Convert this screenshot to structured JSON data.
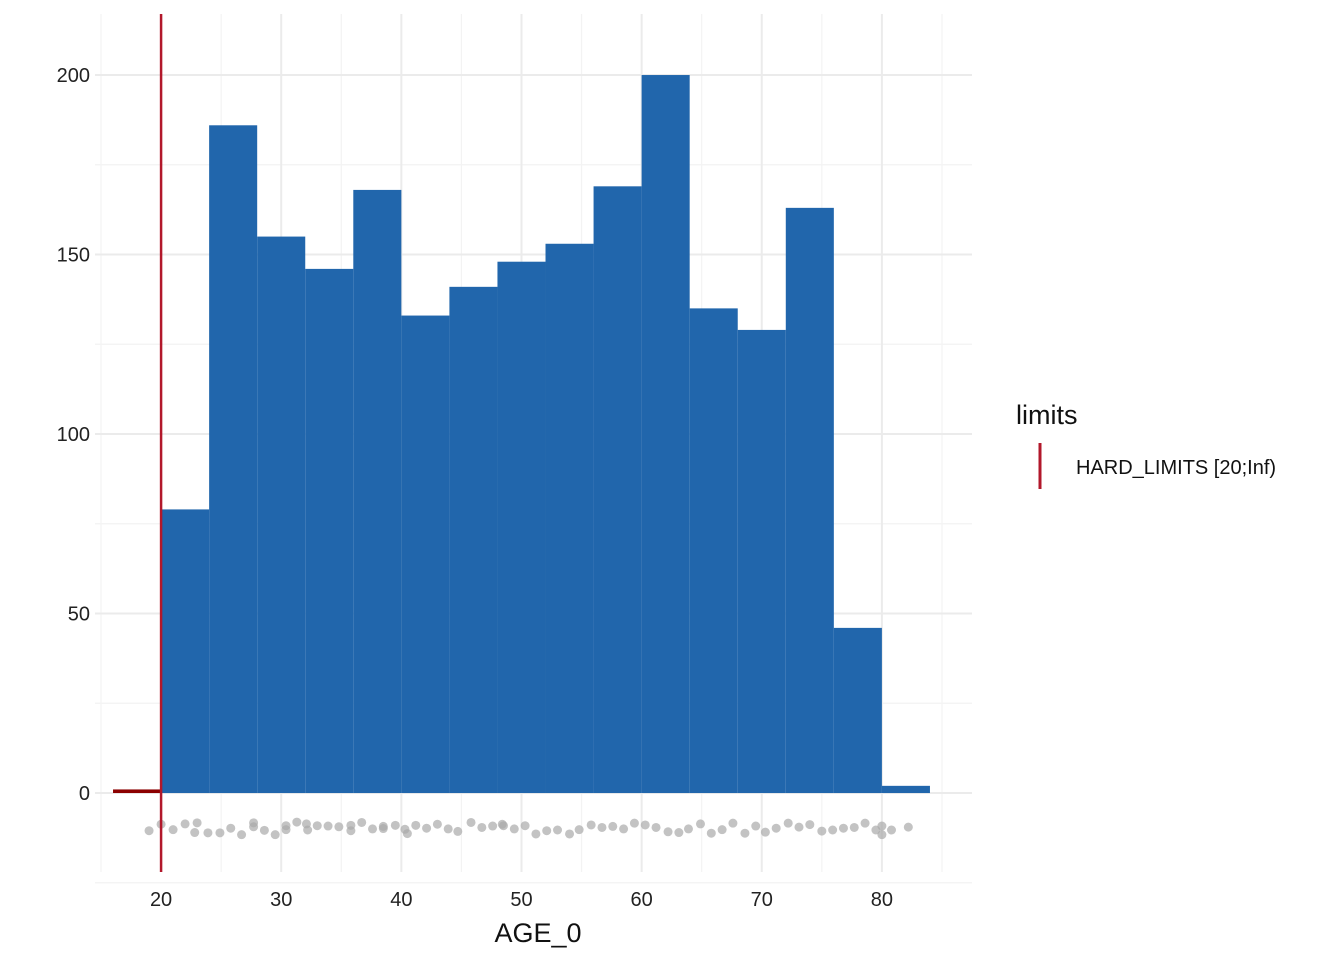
{
  "chart_data": {
    "type": "bar",
    "subtype": "histogram",
    "title": "",
    "xlabel": "AGE_0",
    "ylabel": "",
    "xlim": [
      14.5,
      87.5
    ],
    "ylim": [
      -22,
      217
    ],
    "x_ticks": [
      20,
      30,
      40,
      50,
      60,
      70,
      80
    ],
    "y_ticks": [
      0,
      50,
      100,
      150,
      200
    ],
    "grid": true,
    "bar_color": "#2166AC",
    "bins": [
      {
        "x0": 16,
        "x1": 20,
        "count": 1
      },
      {
        "x0": 20,
        "x1": 24,
        "count": 79
      },
      {
        "x0": 24,
        "x1": 28,
        "count": 186
      },
      {
        "x0": 28,
        "x1": 32,
        "count": 155
      },
      {
        "x0": 32,
        "x1": 36,
        "count": 146
      },
      {
        "x0": 36,
        "x1": 40,
        "count": 168
      },
      {
        "x0": 40,
        "x1": 44,
        "count": 133
      },
      {
        "x0": 44,
        "x1": 48,
        "count": 141
      },
      {
        "x0": 48,
        "x1": 52,
        "count": 148
      },
      {
        "x0": 52,
        "x1": 56,
        "count": 153
      },
      {
        "x0": 56,
        "x1": 60,
        "count": 169
      },
      {
        "x0": 60,
        "x1": 64,
        "count": 200
      },
      {
        "x0": 64,
        "x1": 68,
        "count": 135
      },
      {
        "x0": 68,
        "x1": 72,
        "count": 129
      },
      {
        "x0": 72,
        "x1": 76,
        "count": 163
      },
      {
        "x0": 76,
        "x1": 80,
        "count": 46
      },
      {
        "x0": 80,
        "x1": 84,
        "count": 2
      }
    ],
    "out_of_limit_bin": {
      "x0": 16,
      "x1": 20,
      "count": 1,
      "color": "#8B0000"
    },
    "jitter_points": {
      "color": "#aaaaaa",
      "points": [
        [
          19.0,
          -10.5
        ],
        [
          20.0,
          -8.7
        ],
        [
          21.0,
          -10.2
        ],
        [
          22.0,
          -8.6
        ],
        [
          23.0,
          -8.3
        ],
        [
          22.8,
          -11.0
        ],
        [
          23.9,
          -11.1
        ],
        [
          24.9,
          -11.1
        ],
        [
          25.8,
          -9.8
        ],
        [
          26.7,
          -11.6
        ],
        [
          27.7,
          -9.4
        ],
        [
          27.7,
          -8.3
        ],
        [
          28.6,
          -10.4
        ],
        [
          29.5,
          -11.6
        ],
        [
          30.4,
          -10.2
        ],
        [
          30.4,
          -9.1
        ],
        [
          31.3,
          -8.1
        ],
        [
          32.2,
          -10.3
        ],
        [
          32.1,
          -8.6
        ],
        [
          33.0,
          -9.1
        ],
        [
          33.9,
          -9.2
        ],
        [
          34.8,
          -9.4
        ],
        [
          35.8,
          -10.5
        ],
        [
          35.8,
          -9.0
        ],
        [
          36.7,
          -8.2
        ],
        [
          37.6,
          -10.0
        ],
        [
          38.5,
          -9.3
        ],
        [
          38.5,
          -9.9
        ],
        [
          39.5,
          -9.0
        ],
        [
          40.3,
          -10.1
        ],
        [
          40.5,
          -11.3
        ],
        [
          41.2,
          -9.0
        ],
        [
          42.1,
          -9.8
        ],
        [
          43.0,
          -8.7
        ],
        [
          43.9,
          -10.0
        ],
        [
          44.7,
          -10.7
        ],
        [
          45.8,
          -8.2
        ],
        [
          46.7,
          -9.6
        ],
        [
          47.6,
          -9.2
        ],
        [
          48.5,
          -9.1
        ],
        [
          48.4,
          -8.7
        ],
        [
          49.4,
          -10.0
        ],
        [
          50.3,
          -9.1
        ],
        [
          51.2,
          -11.4
        ],
        [
          52.1,
          -10.5
        ],
        [
          53.0,
          -10.3
        ],
        [
          54.0,
          -11.4
        ],
        [
          54.8,
          -10.2
        ],
        [
          55.8,
          -8.9
        ],
        [
          56.7,
          -9.6
        ],
        [
          57.6,
          -9.3
        ],
        [
          58.5,
          -10.0
        ],
        [
          59.4,
          -8.4
        ],
        [
          60.3,
          -8.9
        ],
        [
          61.2,
          -9.6
        ],
        [
          62.2,
          -10.8
        ],
        [
          63.1,
          -11.0
        ],
        [
          63.9,
          -10.0
        ],
        [
          64.9,
          -8.6
        ],
        [
          65.8,
          -11.2
        ],
        [
          66.7,
          -10.2
        ],
        [
          67.6,
          -8.4
        ],
        [
          68.6,
          -11.2
        ],
        [
          69.5,
          -9.2
        ],
        [
          70.3,
          -10.9
        ],
        [
          71.2,
          -9.8
        ],
        [
          72.2,
          -8.4
        ],
        [
          73.1,
          -9.5
        ],
        [
          74.0,
          -8.8
        ],
        [
          75.0,
          -10.6
        ],
        [
          75.9,
          -10.3
        ],
        [
          76.8,
          -9.8
        ],
        [
          77.7,
          -9.6
        ],
        [
          78.6,
          -8.4
        ],
        [
          79.5,
          -10.3
        ],
        [
          80.0,
          -9.2
        ],
        [
          80.0,
          -11.6
        ],
        [
          80.8,
          -10.3
        ],
        [
          82.2,
          -9.5
        ]
      ]
    },
    "limit_line": {
      "x": 20,
      "color": "#B2182B"
    },
    "legend": {
      "title": "limits",
      "entries": [
        {
          "label": "HARD_LIMITS [20;Inf)",
          "color": "#B2182B"
        }
      ],
      "placement": "right"
    }
  }
}
